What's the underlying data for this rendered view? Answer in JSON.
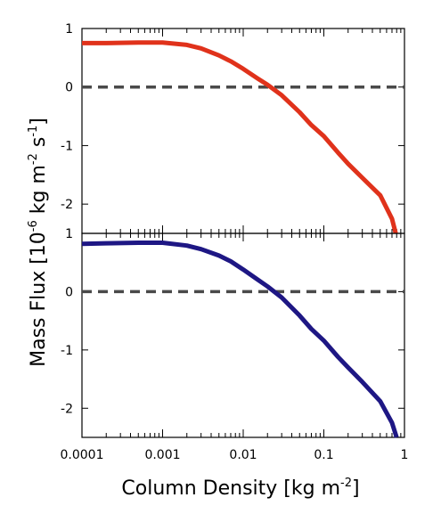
{
  "chart_data": [
    {
      "type": "line",
      "panel": "top",
      "xscale": "log",
      "xlim": [
        0.0001,
        1
      ],
      "ylim": [
        -2.5,
        1
      ],
      "yticks": [
        1,
        0,
        -1,
        -2
      ],
      "ytick_labels": [
        "1",
        "0",
        "-1",
        "-2"
      ],
      "reference_line": {
        "y": 0,
        "style": "dashed",
        "color": "#4a4a4a"
      },
      "series": [
        {
          "color": "#e0321b",
          "x": [
            0.0001,
            0.0002,
            0.0005,
            0.001,
            0.002,
            0.003,
            0.005,
            0.007,
            0.01,
            0.015,
            0.02,
            0.03,
            0.05,
            0.07,
            0.1,
            0.15,
            0.2,
            0.3,
            0.5,
            0.7,
            0.78
          ],
          "y": [
            0.75,
            0.75,
            0.76,
            0.76,
            0.72,
            0.66,
            0.54,
            0.44,
            0.31,
            0.15,
            0.04,
            -0.14,
            -0.43,
            -0.65,
            -0.84,
            -1.12,
            -1.31,
            -1.55,
            -1.85,
            -2.25,
            -2.5
          ]
        }
      ]
    },
    {
      "type": "line",
      "panel": "bottom",
      "xscale": "log",
      "xlim": [
        0.0001,
        1
      ],
      "ylim": [
        -2.5,
        1
      ],
      "yticks": [
        1,
        0,
        -1,
        -2
      ],
      "ytick_labels": [
        "1",
        "0",
        "-1",
        "-2"
      ],
      "xticks": [
        0.0001,
        0.001,
        0.01,
        0.1,
        1
      ],
      "xtick_labels": [
        "0.0001",
        "0.001",
        "0.01",
        "0.1",
        "1"
      ],
      "reference_line": {
        "y": 0,
        "style": "dashed",
        "color": "#4a4a4a"
      },
      "series": [
        {
          "color": "#1e1784",
          "x": [
            0.0001,
            0.0002,
            0.0005,
            0.001,
            0.002,
            0.003,
            0.005,
            0.007,
            0.01,
            0.015,
            0.02,
            0.03,
            0.05,
            0.07,
            0.1,
            0.15,
            0.2,
            0.3,
            0.5,
            0.7,
            0.8
          ],
          "y": [
            0.82,
            0.83,
            0.84,
            0.84,
            0.79,
            0.73,
            0.62,
            0.52,
            0.38,
            0.21,
            0.09,
            -0.1,
            -0.41,
            -0.64,
            -0.84,
            -1.12,
            -1.3,
            -1.55,
            -1.88,
            -2.25,
            -2.5
          ]
        }
      ]
    }
  ],
  "labels": {
    "xlabel": "Column Density [kg m",
    "xlabel_sup": "-2",
    "xlabel_end": "]",
    "ylabel_a": "Mass Flux [10",
    "ylabel_sup1": "-6",
    "ylabel_b": " kg m",
    "ylabel_sup2": "-2",
    "ylabel_c": " s",
    "ylabel_sup3": "-1",
    "ylabel_d": "]"
  }
}
